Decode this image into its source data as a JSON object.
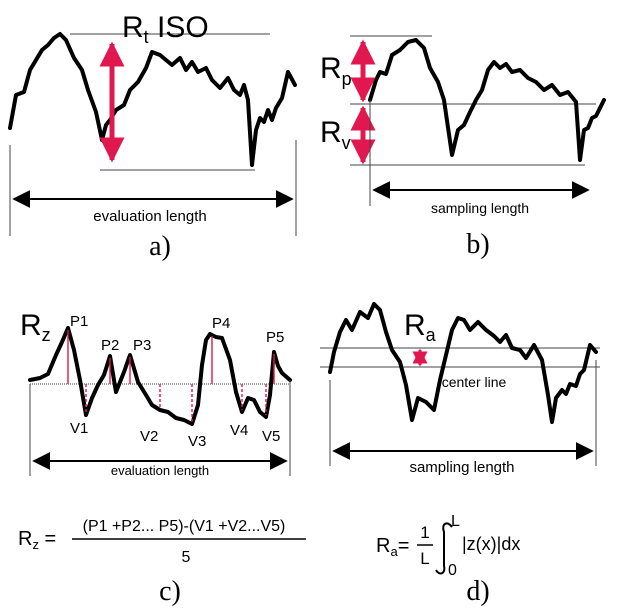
{
  "panel_a": {
    "title_main": "R",
    "title_sub": "t",
    "title_suffix": " ISO",
    "axis_label": "evaluation length",
    "caption": "a)"
  },
  "panel_b": {
    "rp_main": "R",
    "rp_sub": "p",
    "rv_main": "R",
    "rv_sub": "v",
    "axis_label": "sampling length",
    "caption": "b)"
  },
  "panel_c": {
    "title_main": "R",
    "title_sub": "z",
    "peaks": [
      "P1",
      "P2",
      "P3",
      "P4",
      "P5"
    ],
    "valleys": [
      "V1",
      "V2",
      "V3",
      "V4",
      "V5"
    ],
    "axis_label": "evaluation length",
    "formula_lhs_main": "R",
    "formula_lhs_sub": "z",
    "formula_eq": " =",
    "formula_numerator": "(P1 +P2... P5)-(V1 +V2...V5)",
    "formula_denominator": "5",
    "caption": "c)"
  },
  "panel_d": {
    "title_main": "R",
    "title_sub": "a",
    "center_line_label": "center line",
    "axis_label": "sampling length",
    "formula_lhs_main": "R",
    "formula_lhs_sub": "a",
    "formula_eq": "=",
    "formula_frac_num": "1",
    "formula_frac_den": "L",
    "formula_upper": "L",
    "formula_lower": "0",
    "formula_integrand": "|z(x)|dx",
    "caption": "d)"
  },
  "colors": {
    "accent": "#e0184f",
    "profile": "#000000",
    "guide": "#444444"
  }
}
